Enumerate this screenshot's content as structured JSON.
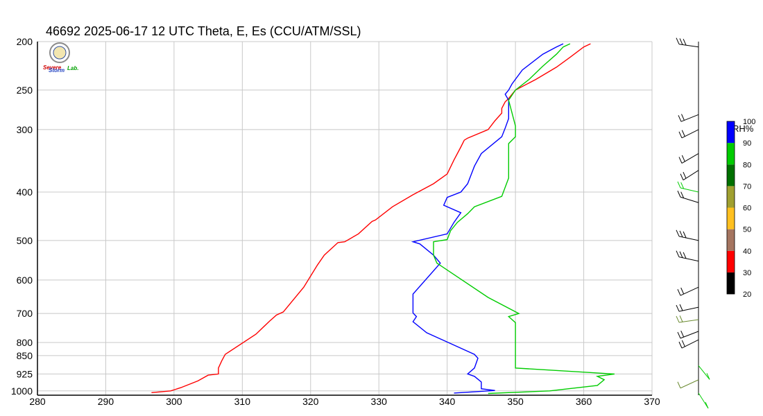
{
  "chart_data": {
    "type": "line",
    "title": "46692  2025-06-17 12 UTC  Theta, E, Es (CCU/ATM/SSL)",
    "xlim": [
      280,
      370
    ],
    "x_ticks": [
      "280",
      "290",
      "300",
      "310",
      "320",
      "330",
      "340",
      "350",
      "360",
      "370"
    ],
    "y_ticks": [
      "200",
      "250",
      "300",
      "400",
      "500",
      "600",
      "700",
      "800",
      "850",
      "925",
      "1000"
    ],
    "y_scale": "log",
    "ylim": [
      200,
      1020
    ],
    "grid": true,
    "series": [
      {
        "color": "#ff0000",
        "points": [
          [
            296.7,
            1008
          ],
          [
            299.5,
            1000
          ],
          [
            301,
            985
          ],
          [
            303.5,
            955
          ],
          [
            305,
            930
          ],
          [
            306.5,
            925
          ],
          [
            306.5,
            900
          ],
          [
            307,
            870
          ],
          [
            307.5,
            845
          ],
          [
            312,
            770
          ],
          [
            314,
            725
          ],
          [
            315,
            705
          ],
          [
            316,
            695
          ],
          [
            319,
            620
          ],
          [
            321,
            560
          ],
          [
            322,
            535
          ],
          [
            324,
            505
          ],
          [
            325,
            503
          ],
          [
            327,
            485
          ],
          [
            329,
            458
          ],
          [
            329.5,
            455
          ],
          [
            332,
            428
          ],
          [
            335,
            405
          ],
          [
            338,
            385
          ],
          [
            340,
            368
          ],
          [
            341,
            345
          ],
          [
            342,
            325
          ],
          [
            342.5,
            315
          ],
          [
            343,
            312
          ],
          [
            346,
            300
          ],
          [
            347,
            288
          ],
          [
            348,
            278
          ],
          [
            348,
            272
          ],
          [
            348.5,
            264
          ],
          [
            349,
            260
          ],
          [
            349.5,
            255
          ],
          [
            350,
            250
          ],
          [
            353,
            238
          ],
          [
            356,
            225
          ],
          [
            358,
            215
          ],
          [
            360,
            205
          ],
          [
            361,
            202
          ]
        ]
      },
      {
        "color": "#0000ff",
        "points": [
          [
            341,
            1010
          ],
          [
            347,
            998
          ],
          [
            345,
            990
          ],
          [
            345,
            960
          ],
          [
            344,
            935
          ],
          [
            343,
            925
          ],
          [
            344,
            900
          ],
          [
            344.5,
            860
          ],
          [
            344,
            845
          ],
          [
            337,
            765
          ],
          [
            335,
            727
          ],
          [
            335.5,
            710
          ],
          [
            335,
            698
          ],
          [
            335,
            640
          ],
          [
            339,
            555
          ],
          [
            338,
            535
          ],
          [
            336,
            508
          ],
          [
            335,
            503
          ],
          [
            340,
            485
          ],
          [
            341,
            460
          ],
          [
            342,
            440
          ],
          [
            339.5,
            425
          ],
          [
            340,
            410
          ],
          [
            342,
            400
          ],
          [
            343,
            385
          ],
          [
            344,
            355
          ],
          [
            345,
            335
          ],
          [
            348,
            310
          ],
          [
            348.5,
            298
          ],
          [
            349,
            285
          ],
          [
            349,
            262
          ],
          [
            348.5,
            255
          ],
          [
            349,
            250
          ],
          [
            349.5,
            243
          ],
          [
            351,
            228
          ],
          [
            354,
            212
          ],
          [
            356,
            205
          ],
          [
            357,
            202
          ]
        ]
      },
      {
        "color": "#00cc00",
        "points": [
          [
            346,
            1012
          ],
          [
            355,
            1000
          ],
          [
            362,
            975
          ],
          [
            363,
            950
          ],
          [
            362,
            935
          ],
          [
            364.5,
            925
          ],
          [
            350,
            900
          ],
          [
            350,
            850
          ],
          [
            350,
            818
          ],
          [
            350,
            730
          ],
          [
            349,
            710
          ],
          [
            350.5,
            700
          ],
          [
            346,
            650
          ],
          [
            338.5,
            555
          ],
          [
            338,
            535
          ],
          [
            338,
            508
          ],
          [
            338,
            503
          ],
          [
            340,
            498
          ],
          [
            340.5,
            478
          ],
          [
            341.5,
            460
          ],
          [
            343,
            442
          ],
          [
            344,
            428
          ],
          [
            348,
            408
          ],
          [
            349,
            375
          ],
          [
            349,
            338
          ],
          [
            349,
            320
          ],
          [
            350,
            310
          ],
          [
            350,
            295
          ],
          [
            349.5,
            278
          ],
          [
            349,
            262
          ],
          [
            350,
            250
          ],
          [
            352,
            238
          ],
          [
            354,
            224
          ],
          [
            356,
            212
          ],
          [
            357,
            205
          ],
          [
            358,
            202
          ]
        ]
      }
    ],
    "colorbar": {
      "label": "RH%",
      "ticks": [
        "20",
        "30",
        "40",
        "50",
        "60",
        "70",
        "80",
        "90",
        "100"
      ],
      "colors": [
        "#000000",
        "#ff0000",
        "#a57560",
        "#ffc020",
        "#a0a030",
        "#007000",
        "#00cc00",
        "#0000ff"
      ]
    },
    "logo": {
      "text_lines": [
        "Severe",
        "Storm",
        "Lab."
      ],
      "colors": [
        "#d00000",
        "#2040c0",
        "#00a000"
      ]
    }
  }
}
